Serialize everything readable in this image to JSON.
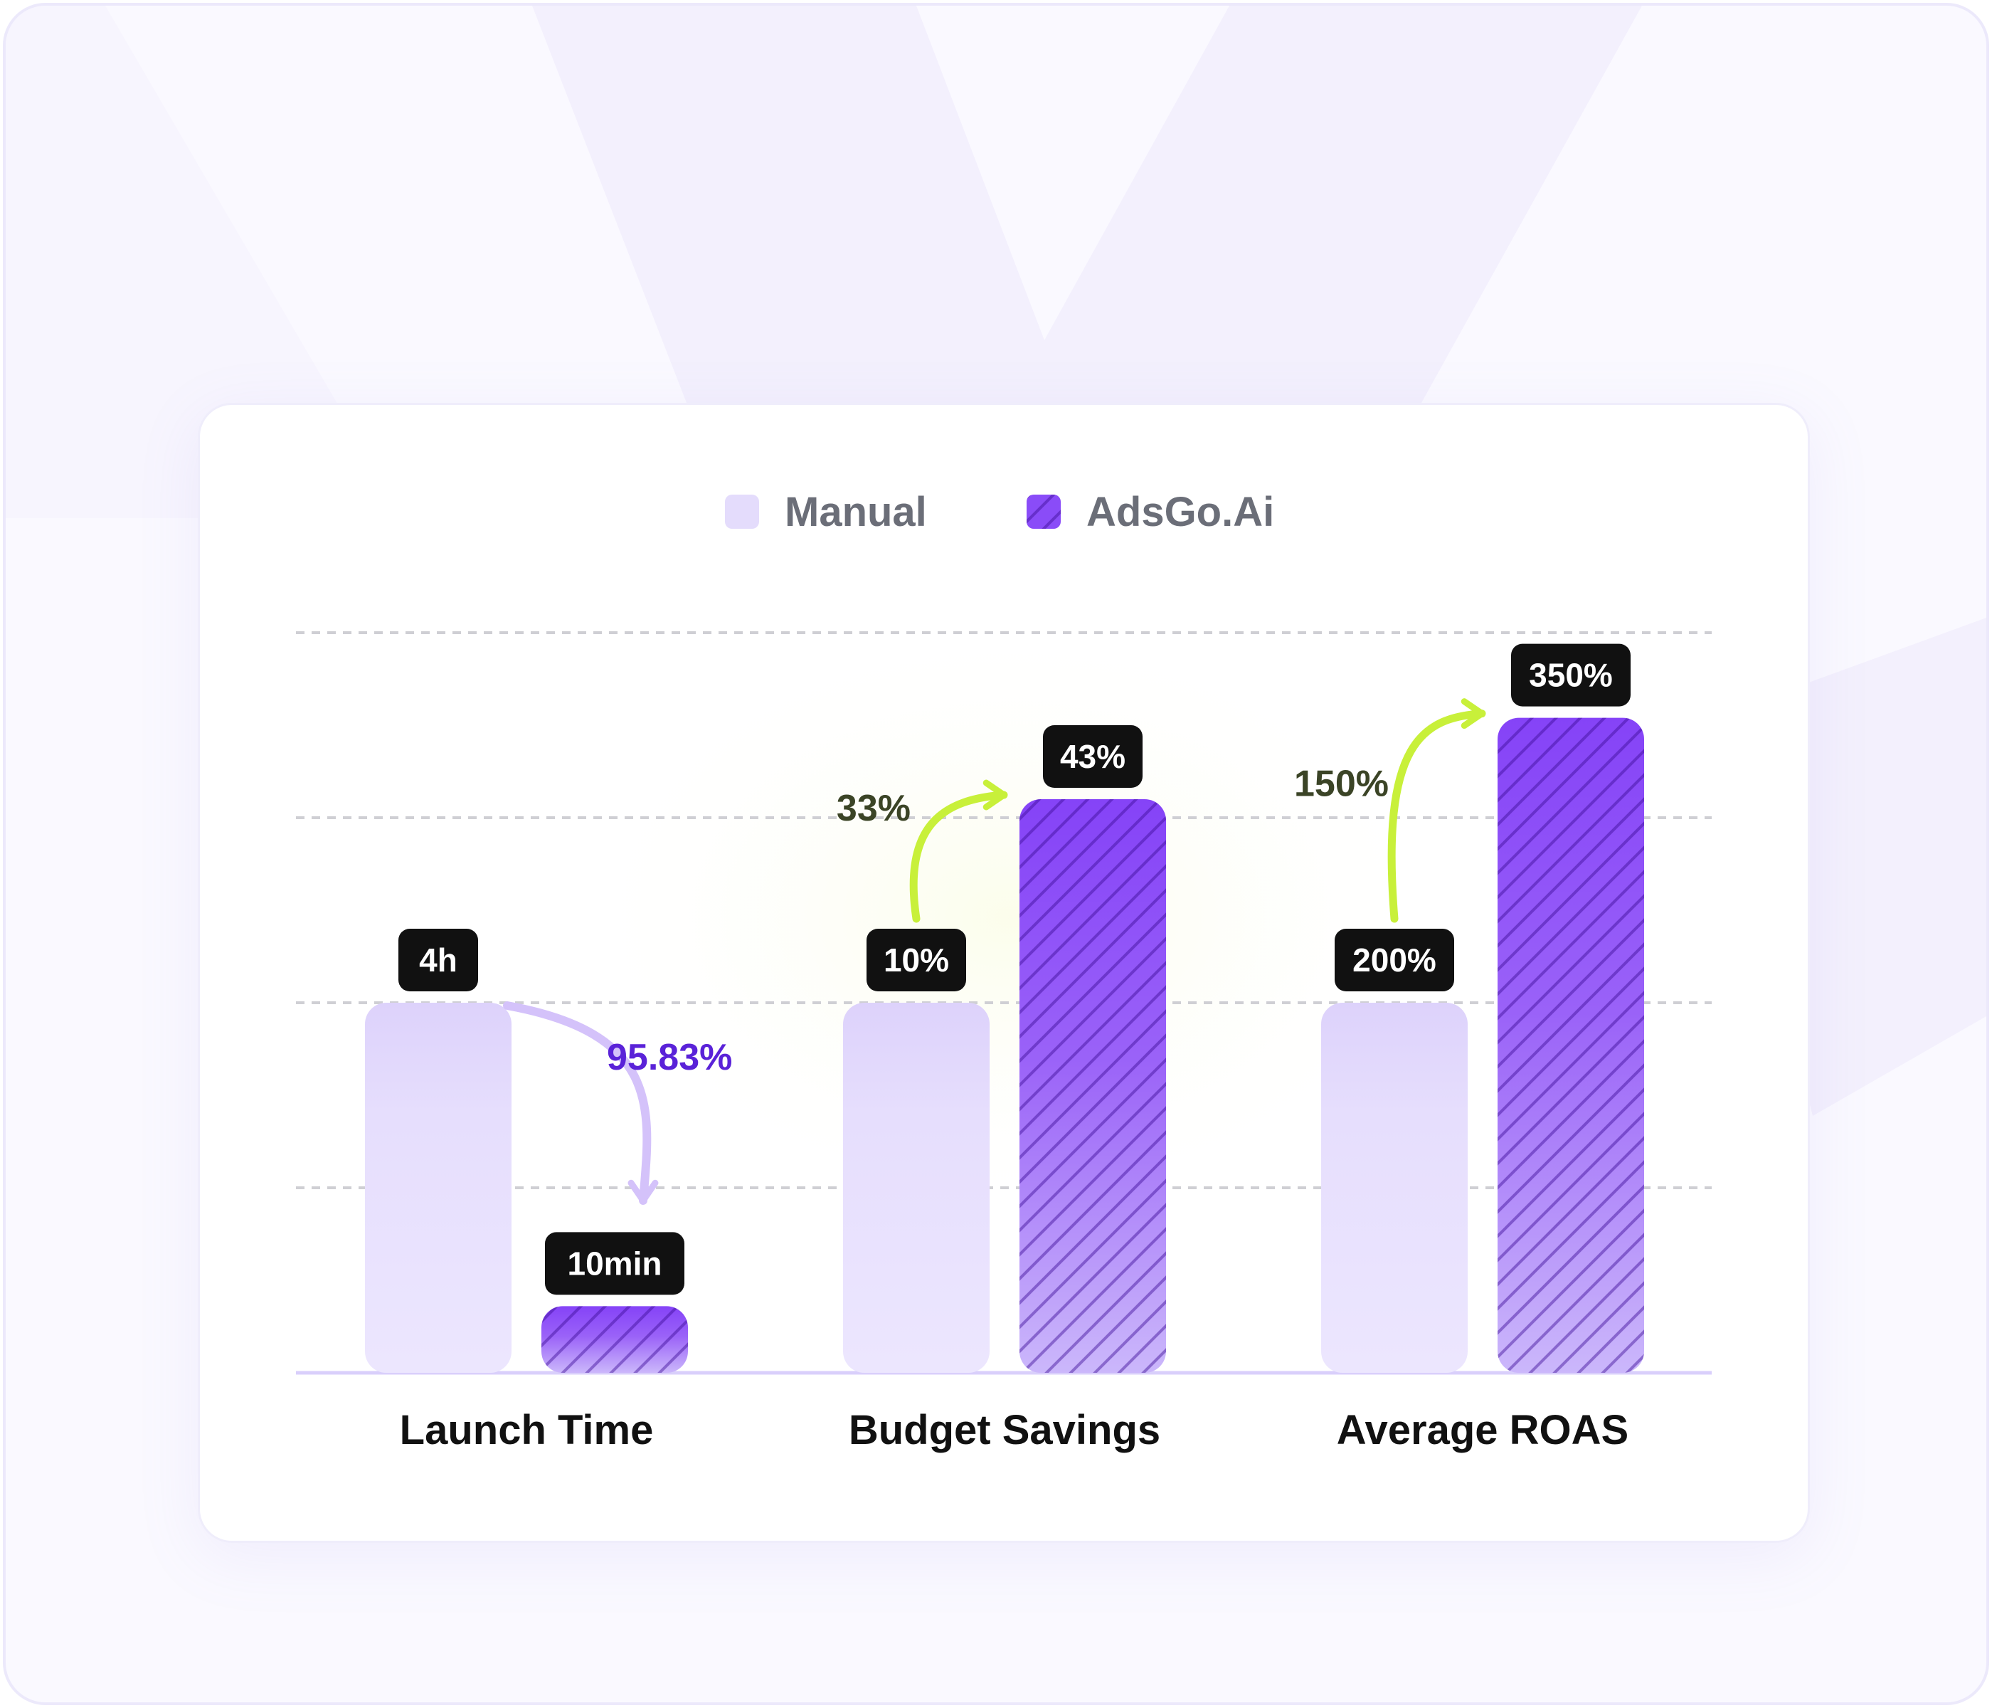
{
  "chart_data": {
    "type": "bar",
    "categories": [
      "Launch Time",
      "Budget Savings",
      "Average ROAS"
    ],
    "series": [
      {
        "name": "Manual",
        "values": [
          "4h",
          "10%",
          "200%"
        ],
        "relative_height": [
          0.5,
          0.5,
          0.5
        ]
      },
      {
        "name": "AdsGo.Ai",
        "values": [
          "10min",
          "43%",
          "350%"
        ],
        "relative_height": [
          0.09,
          0.775,
          0.885
        ]
      }
    ],
    "changes": [
      {
        "category": "Launch Time",
        "label": "95.83%",
        "direction": "down"
      },
      {
        "category": "Budget Savings",
        "label": "33%",
        "direction": "up"
      },
      {
        "category": "Average ROAS",
        "label": "150%",
        "direction": "up"
      }
    ],
    "legend_position": "top-center",
    "grid": true,
    "colors": {
      "manual": "#e4dcfc",
      "adsgo": "#8a4cf8",
      "change_up": "#c8f03a",
      "change_up_text": "#3b4426",
      "change_down": "#d4c2fa",
      "change_down_text": "#5a22d8",
      "badge": "#111111"
    }
  }
}
